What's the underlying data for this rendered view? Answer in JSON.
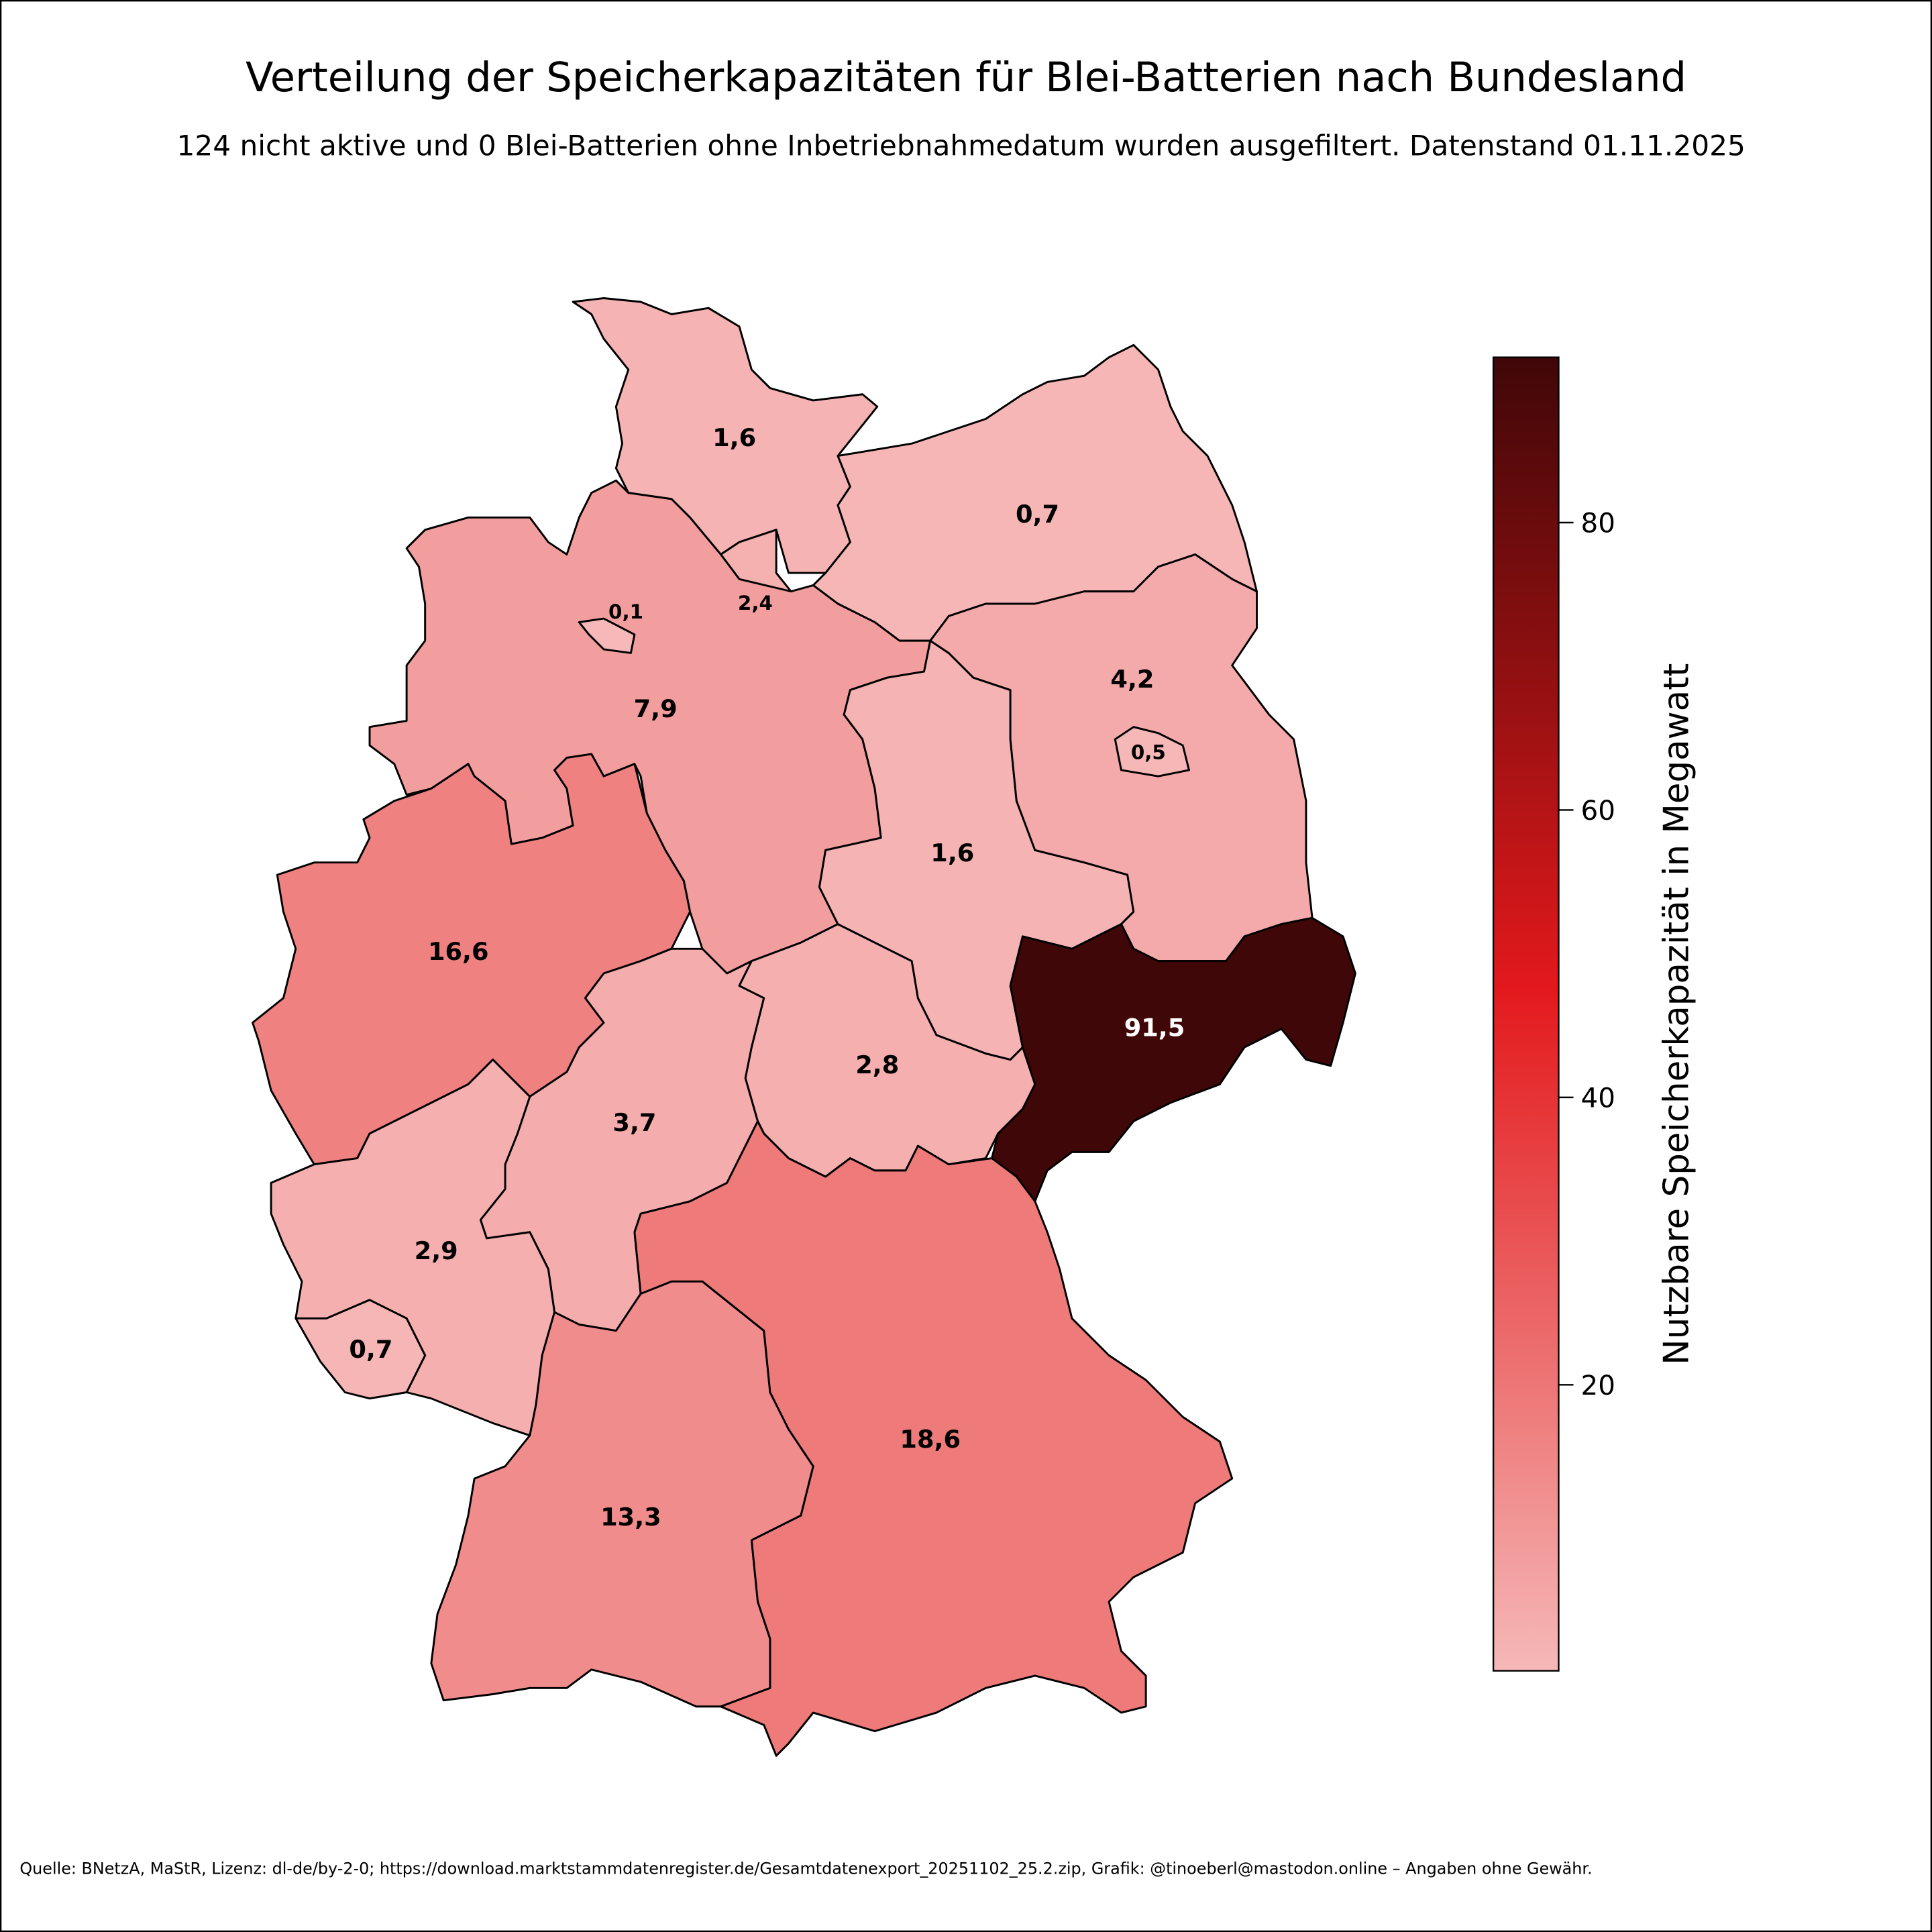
{
  "title": "Verteilung der Speicherkapazitäten für Blei-Batterien nach Bundesland",
  "subtitle": "124 nicht aktive und 0 Blei-Batterien ohne Inbetriebnahmedatum wurden ausgefiltert. Datenstand 01.11.2025",
  "footer": "Quelle: BNetzA, MaStR, Lizenz: dl-de/by-2-0; https://download.marktstammdatenregister.de/Gesamtdatenexport_20251102_25.2.zip, Grafik: @tinoeberl@mastodon.online – Angaben ohne Gewähr.",
  "chart_data": {
    "type": "choropleth",
    "regions": [
      {
        "label": "1,6",
        "value": 1.6
      },
      {
        "label": "2,4",
        "value": 2.4
      },
      {
        "label": "0,7",
        "value": 0.7
      },
      {
        "label": "7,9",
        "value": 7.9
      },
      {
        "label": "0,1",
        "value": 0.1
      },
      {
        "label": "16,6",
        "value": 16.6
      },
      {
        "label": "3,7",
        "value": 3.7
      },
      {
        "label": "2,8",
        "value": 2.8
      },
      {
        "label": "1,6",
        "value": 1.6
      },
      {
        "label": "4,2",
        "value": 4.2
      },
      {
        "label": "0,5",
        "value": 0.5
      },
      {
        "label": "91,5",
        "value": 91.5
      },
      {
        "label": "2,9",
        "value": 2.9
      },
      {
        "label": "0,7",
        "value": 0.7
      },
      {
        "label": "13,3",
        "value": 13.3
      },
      {
        "label": "18,6",
        "value": 18.6
      }
    ],
    "colorbar": {
      "label": "Nutzbare Speicherkapazität in Megawatt",
      "range": [
        0.1,
        91.5
      ],
      "ticks": [
        20,
        40,
        60,
        80
      ],
      "tick_labels": [
        "20",
        "40",
        "60",
        "80"
      ],
      "colormap": [
        "#f6b8b8",
        "#ee7b7b",
        "#e3191c",
        "#8a0f10",
        "#400708"
      ]
    }
  }
}
